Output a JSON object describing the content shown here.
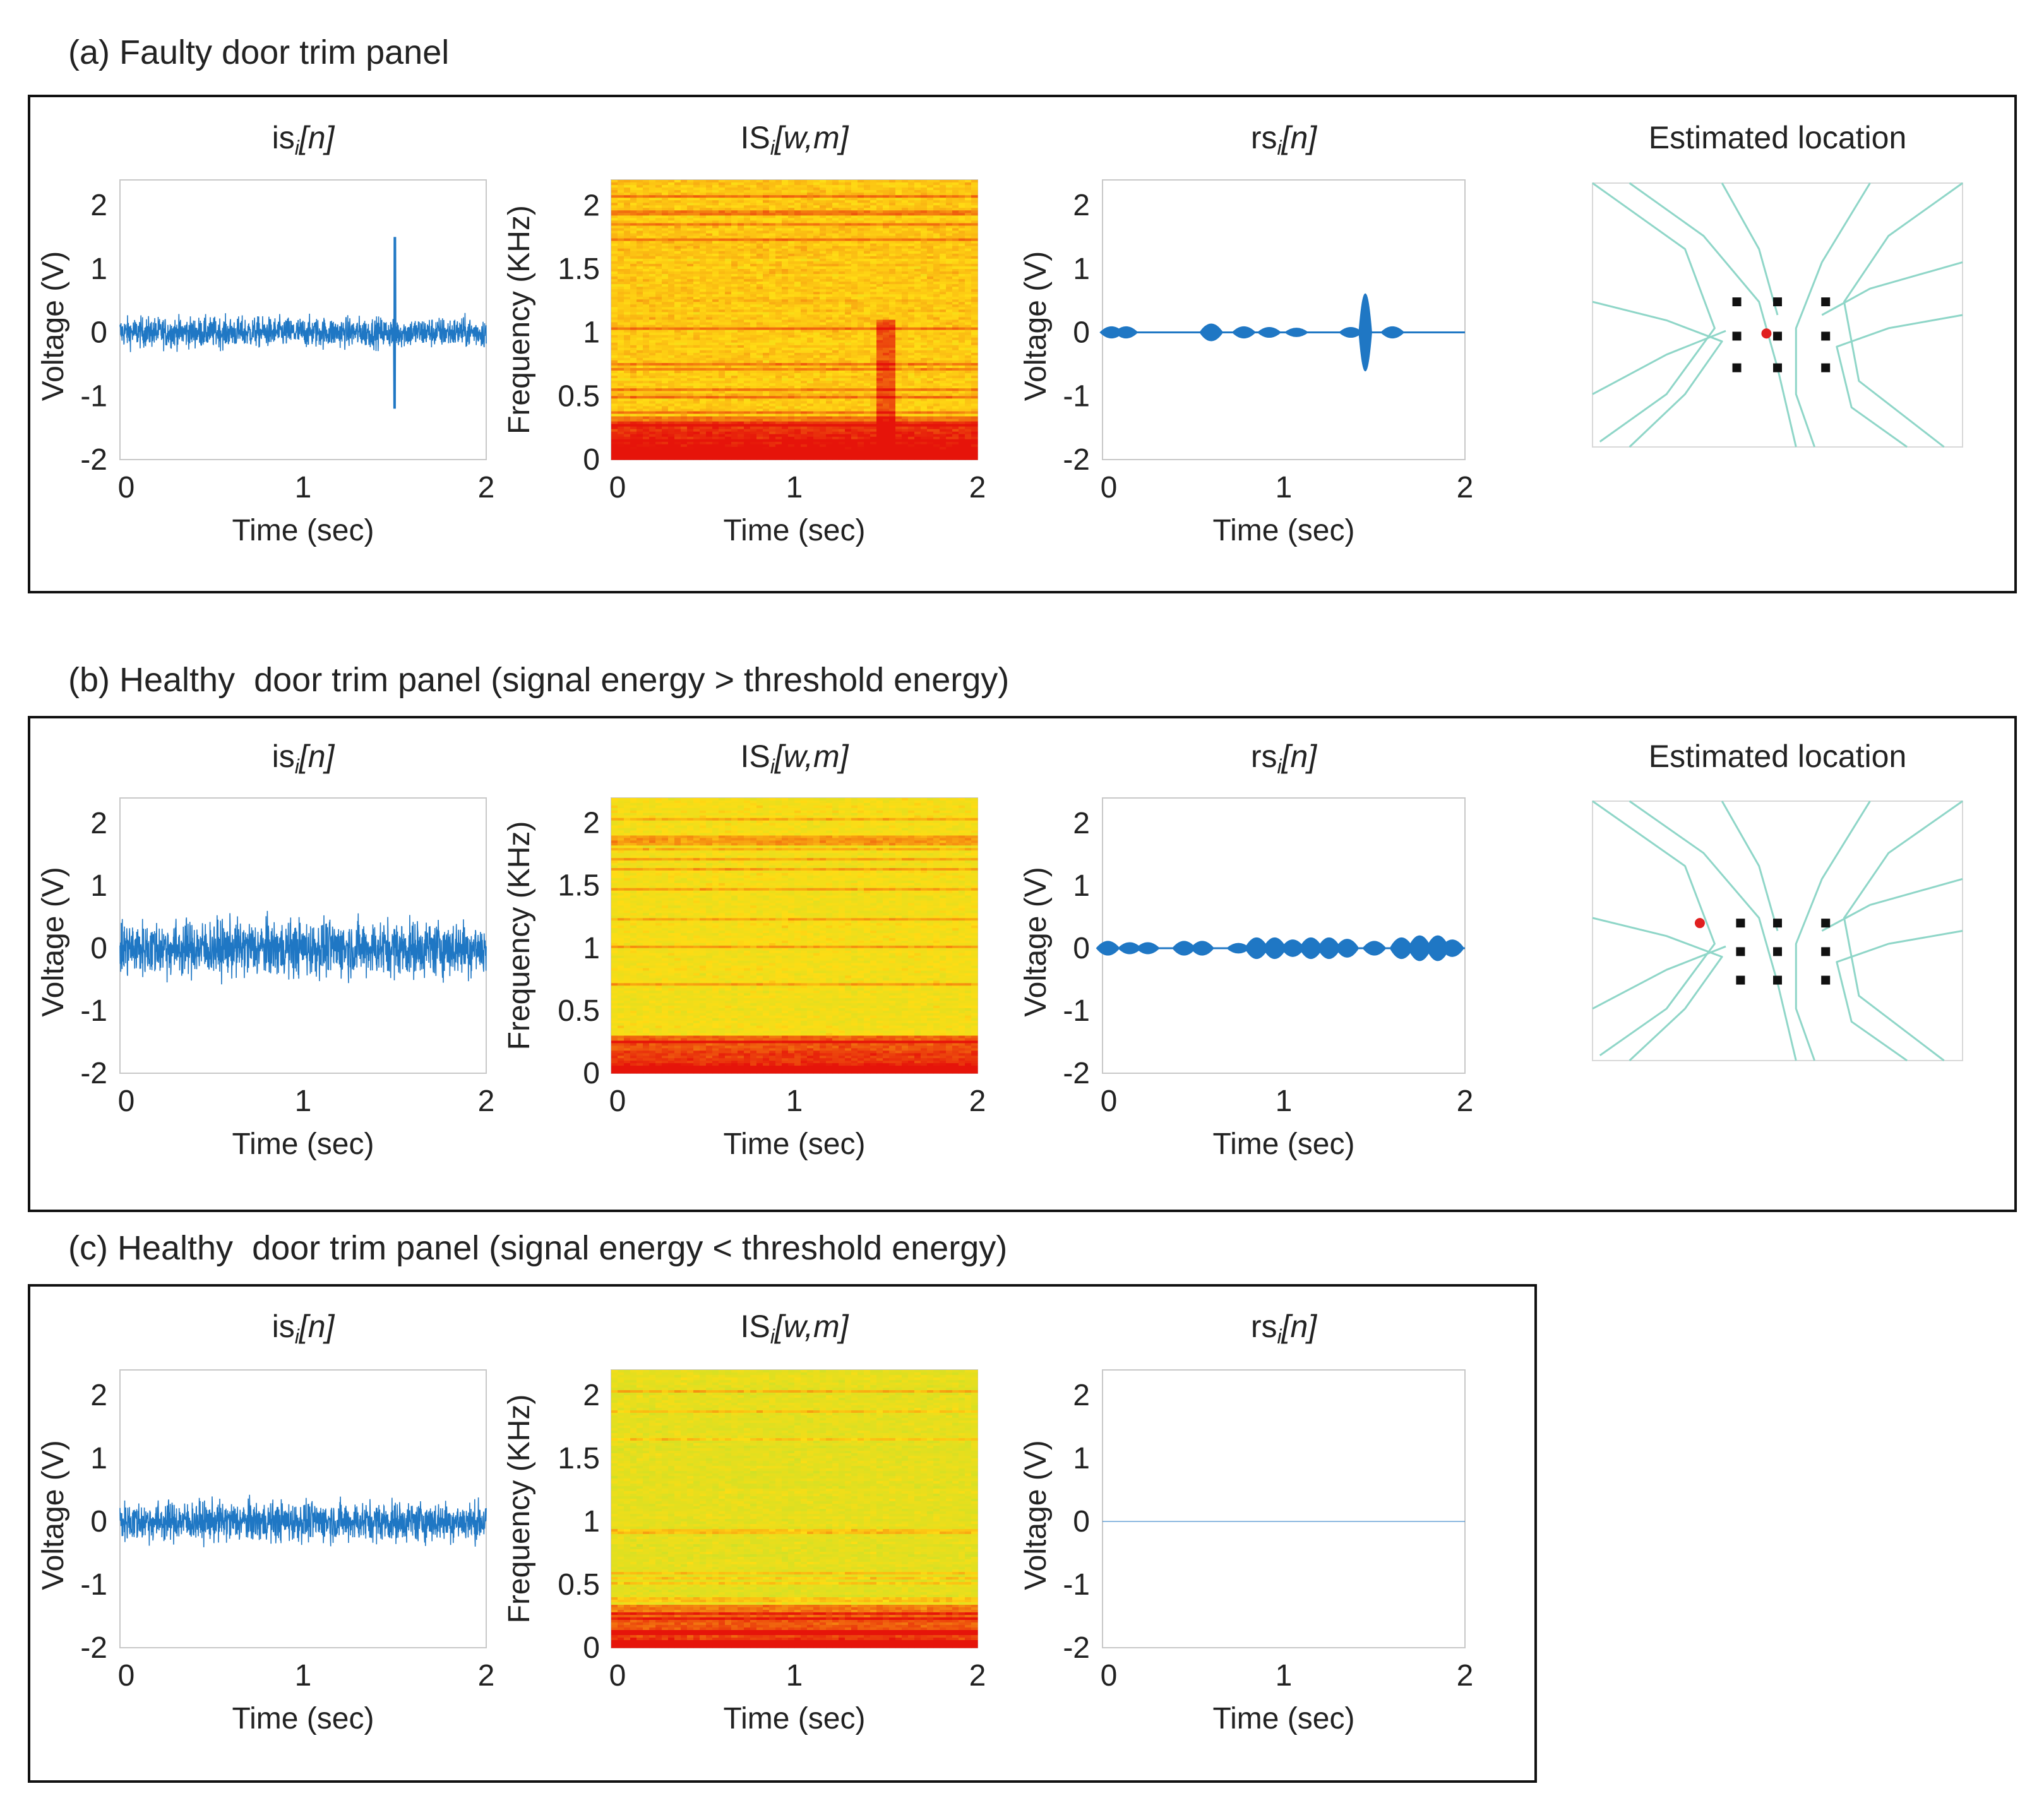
{
  "rows": [
    {
      "id": "a",
      "title": "(a) Faulty door trim panel",
      "plots": [
        {
          "kind": "is",
          "title": {
            "base": "is",
            "sub": "i",
            "arg": "[n]"
          }
        },
        {
          "kind": "IS",
          "title": {
            "base": "IS",
            "sub": "i",
            "arg": "[w,m]"
          }
        },
        {
          "kind": "rs",
          "title": {
            "base": "rs",
            "sub": "i",
            "arg": "[n]"
          }
        },
        {
          "kind": "loc",
          "title": {
            "base": "Estimated location",
            "sub": "",
            "arg": ""
          }
        }
      ]
    },
    {
      "id": "b",
      "title": "(b) Healthy  door trim panel (signal energy > threshold energy)",
      "plots": [
        {
          "kind": "is",
          "title": {
            "base": "is",
            "sub": "i",
            "arg": "[n]"
          }
        },
        {
          "kind": "IS",
          "title": {
            "base": "IS",
            "sub": "i",
            "arg": "[w,m]"
          }
        },
        {
          "kind": "rs",
          "title": {
            "base": "rs",
            "sub": "i",
            "arg": "[n]"
          }
        },
        {
          "kind": "loc",
          "title": {
            "base": "Estimated location",
            "sub": "",
            "arg": ""
          }
        }
      ]
    },
    {
      "id": "c",
      "title": "(c) Healthy  door trim panel (signal energy < threshold energy)",
      "plots": [
        {
          "kind": "is",
          "title": {
            "base": "is",
            "sub": "i",
            "arg": "[n]"
          }
        },
        {
          "kind": "IS",
          "title": {
            "base": "IS",
            "sub": "i",
            "arg": "[w,m]"
          }
        },
        {
          "kind": "rs",
          "title": {
            "base": "rs",
            "sub": "i",
            "arg": "[n]"
          }
        }
      ]
    }
  ],
  "axes": {
    "time_xlabel": "Time (sec)",
    "voltage_ylabel": "Voltage (V)",
    "freq_ylabel": "Frequency (KHz)",
    "time_ticks": [
      "0",
      "1",
      "2"
    ],
    "voltage_ticks": [
      "2",
      "1",
      "0",
      "-1",
      "-2"
    ],
    "freq_ticks": [
      "2",
      "1.5",
      "1",
      "0.5",
      "0"
    ]
  },
  "colors": {
    "signal": "#1f77c4",
    "frame": "#111111",
    "sensor": "#111111",
    "estimate": "#e02020",
    "hyperbola": "#8fd6c8"
  },
  "chart_data": [
    {
      "type": "line",
      "panel": "a",
      "name": "is_i[n]",
      "xlabel": "Time (sec)",
      "ylabel": "Voltage (V)",
      "xlim": [
        0,
        2
      ],
      "ylim": [
        -2,
        2
      ],
      "grid": false,
      "noise_amplitude": 0.45,
      "spike": {
        "x": 1.5,
        "y_max": 1.5,
        "y_min": -1.2
      }
    },
    {
      "type": "heatmap",
      "panel": "a",
      "name": "IS_i[w,m]",
      "xlabel": "Time (sec)",
      "ylabel": "Frequency (KHz)",
      "xlim": [
        0,
        2
      ],
      "ylim": [
        0,
        2.2
      ],
      "strong_band_khz": [
        0,
        0.3
      ],
      "vertical_line_sec": 1.5
    },
    {
      "type": "line",
      "panel": "a",
      "name": "rs_i[n]",
      "xlabel": "Time (sec)",
      "ylabel": "Voltage (V)",
      "xlim": [
        0,
        2
      ],
      "ylim": [
        -2,
        2
      ],
      "grid": false,
      "bursts": [
        {
          "x": 0.05,
          "a": 0.08
        },
        {
          "x": 0.13,
          "a": 0.08
        },
        {
          "x": 0.6,
          "a": 0.12
        },
        {
          "x": 0.78,
          "a": 0.08
        },
        {
          "x": 0.92,
          "a": 0.07
        },
        {
          "x": 1.07,
          "a": 0.06
        },
        {
          "x": 1.37,
          "a": 0.07
        },
        {
          "x": 1.45,
          "a": 0.55
        },
        {
          "x": 1.6,
          "a": 0.08
        }
      ]
    },
    {
      "type": "scatter",
      "panel": "a",
      "name": "Estimated location",
      "sensors": [
        [
          0.39,
          0.45
        ],
        [
          0.39,
          0.58
        ],
        [
          0.39,
          0.7
        ],
        [
          0.5,
          0.45
        ],
        [
          0.5,
          0.58
        ],
        [
          0.5,
          0.7
        ],
        [
          0.63,
          0.45
        ],
        [
          0.63,
          0.58
        ],
        [
          0.63,
          0.7
        ]
      ],
      "estimate": [
        0.47,
        0.57
      ]
    },
    {
      "type": "line",
      "panel": "b",
      "name": "is_i[n]",
      "xlabel": "Time (sec)",
      "ylabel": "Voltage (V)",
      "xlim": [
        0,
        2
      ],
      "ylim": [
        -2,
        2
      ],
      "grid": false,
      "noise_amplitude": 0.85
    },
    {
      "type": "heatmap",
      "panel": "b",
      "name": "IS_i[w,m]",
      "xlabel": "Time (sec)",
      "ylabel": "Frequency (KHz)",
      "xlim": [
        0,
        2
      ],
      "ylim": [
        0,
        2.2
      ],
      "strong_band_khz": [
        0,
        0.3
      ]
    },
    {
      "type": "line",
      "panel": "b",
      "name": "rs_i[n]",
      "xlabel": "Time (sec)",
      "ylabel": "Voltage (V)",
      "xlim": [
        0,
        2
      ],
      "ylim": [
        -2,
        2
      ],
      "grid": false,
      "bursts": [
        {
          "x": 0.03,
          "a": 0.1
        },
        {
          "x": 0.15,
          "a": 0.08
        },
        {
          "x": 0.25,
          "a": 0.08
        },
        {
          "x": 0.45,
          "a": 0.1
        },
        {
          "x": 0.55,
          "a": 0.1
        },
        {
          "x": 0.75,
          "a": 0.07
        },
        {
          "x": 0.85,
          "a": 0.15
        },
        {
          "x": 0.95,
          "a": 0.15
        },
        {
          "x": 1.05,
          "a": 0.12
        },
        {
          "x": 1.15,
          "a": 0.15
        },
        {
          "x": 1.25,
          "a": 0.15
        },
        {
          "x": 1.35,
          "a": 0.13
        },
        {
          "x": 1.5,
          "a": 0.1
        },
        {
          "x": 1.65,
          "a": 0.15
        },
        {
          "x": 1.75,
          "a": 0.18
        },
        {
          "x": 1.85,
          "a": 0.18
        },
        {
          "x": 1.93,
          "a": 0.12
        }
      ]
    },
    {
      "type": "scatter",
      "panel": "b",
      "name": "Estimated location",
      "sensors": [
        [
          0.4,
          0.47
        ],
        [
          0.4,
          0.58
        ],
        [
          0.4,
          0.69
        ],
        [
          0.5,
          0.47
        ],
        [
          0.5,
          0.58
        ],
        [
          0.5,
          0.69
        ],
        [
          0.63,
          0.47
        ],
        [
          0.63,
          0.58
        ],
        [
          0.63,
          0.69
        ]
      ],
      "estimate": [
        0.29,
        0.47
      ]
    },
    {
      "type": "line",
      "panel": "c",
      "name": "is_i[n]",
      "xlabel": "Time (sec)",
      "ylabel": "Voltage (V)",
      "xlim": [
        0,
        2
      ],
      "ylim": [
        -2,
        2
      ],
      "grid": false,
      "noise_amplitude": 0.6
    },
    {
      "type": "heatmap",
      "panel": "c",
      "name": "IS_i[w,m]",
      "xlabel": "Time (sec)",
      "ylabel": "Frequency (KHz)",
      "xlim": [
        0,
        2
      ],
      "ylim": [
        0,
        2.2
      ],
      "strong_band_khz": [
        0,
        0.35
      ]
    },
    {
      "type": "line",
      "panel": "c",
      "name": "rs_i[n]",
      "xlabel": "Time (sec)",
      "ylabel": "Voltage (V)",
      "xlim": [
        0,
        2
      ],
      "ylim": [
        -2,
        2
      ],
      "grid": false,
      "bursts": []
    }
  ]
}
